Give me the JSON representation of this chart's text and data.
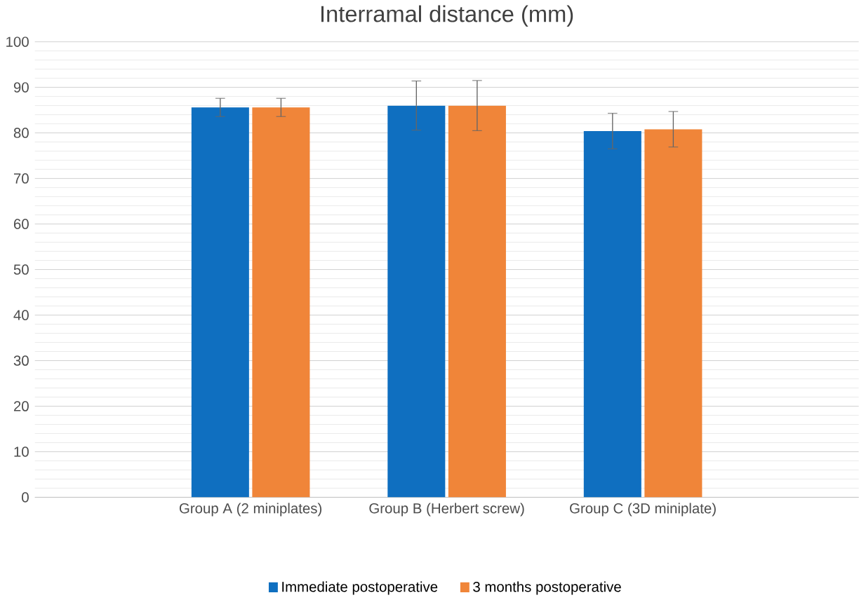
{
  "chart_data": {
    "type": "bar",
    "title": "Interramal distance (mm)",
    "categories": [
      "Group A (2 miniplates)",
      "Group B (Herbert screw)",
      "Group C (3D miniplate)"
    ],
    "series": [
      {
        "name": "Immediate postoperative",
        "color": "#0f6fc0",
        "values": [
          85.6,
          86,
          80.4
        ],
        "errors": [
          2,
          5.4,
          3.9
        ]
      },
      {
        "name": "3 months postoperative",
        "color": "#f08539",
        "values": [
          85.6,
          86,
          80.8
        ],
        "errors": [
          2,
          5.5,
          3.9
        ]
      }
    ],
    "ylim": [
      0,
      100
    ],
    "yticks": [
      0,
      10,
      20,
      30,
      40,
      50,
      60,
      70,
      80,
      90,
      100
    ],
    "grid": "y",
    "legend": "bottom"
  }
}
